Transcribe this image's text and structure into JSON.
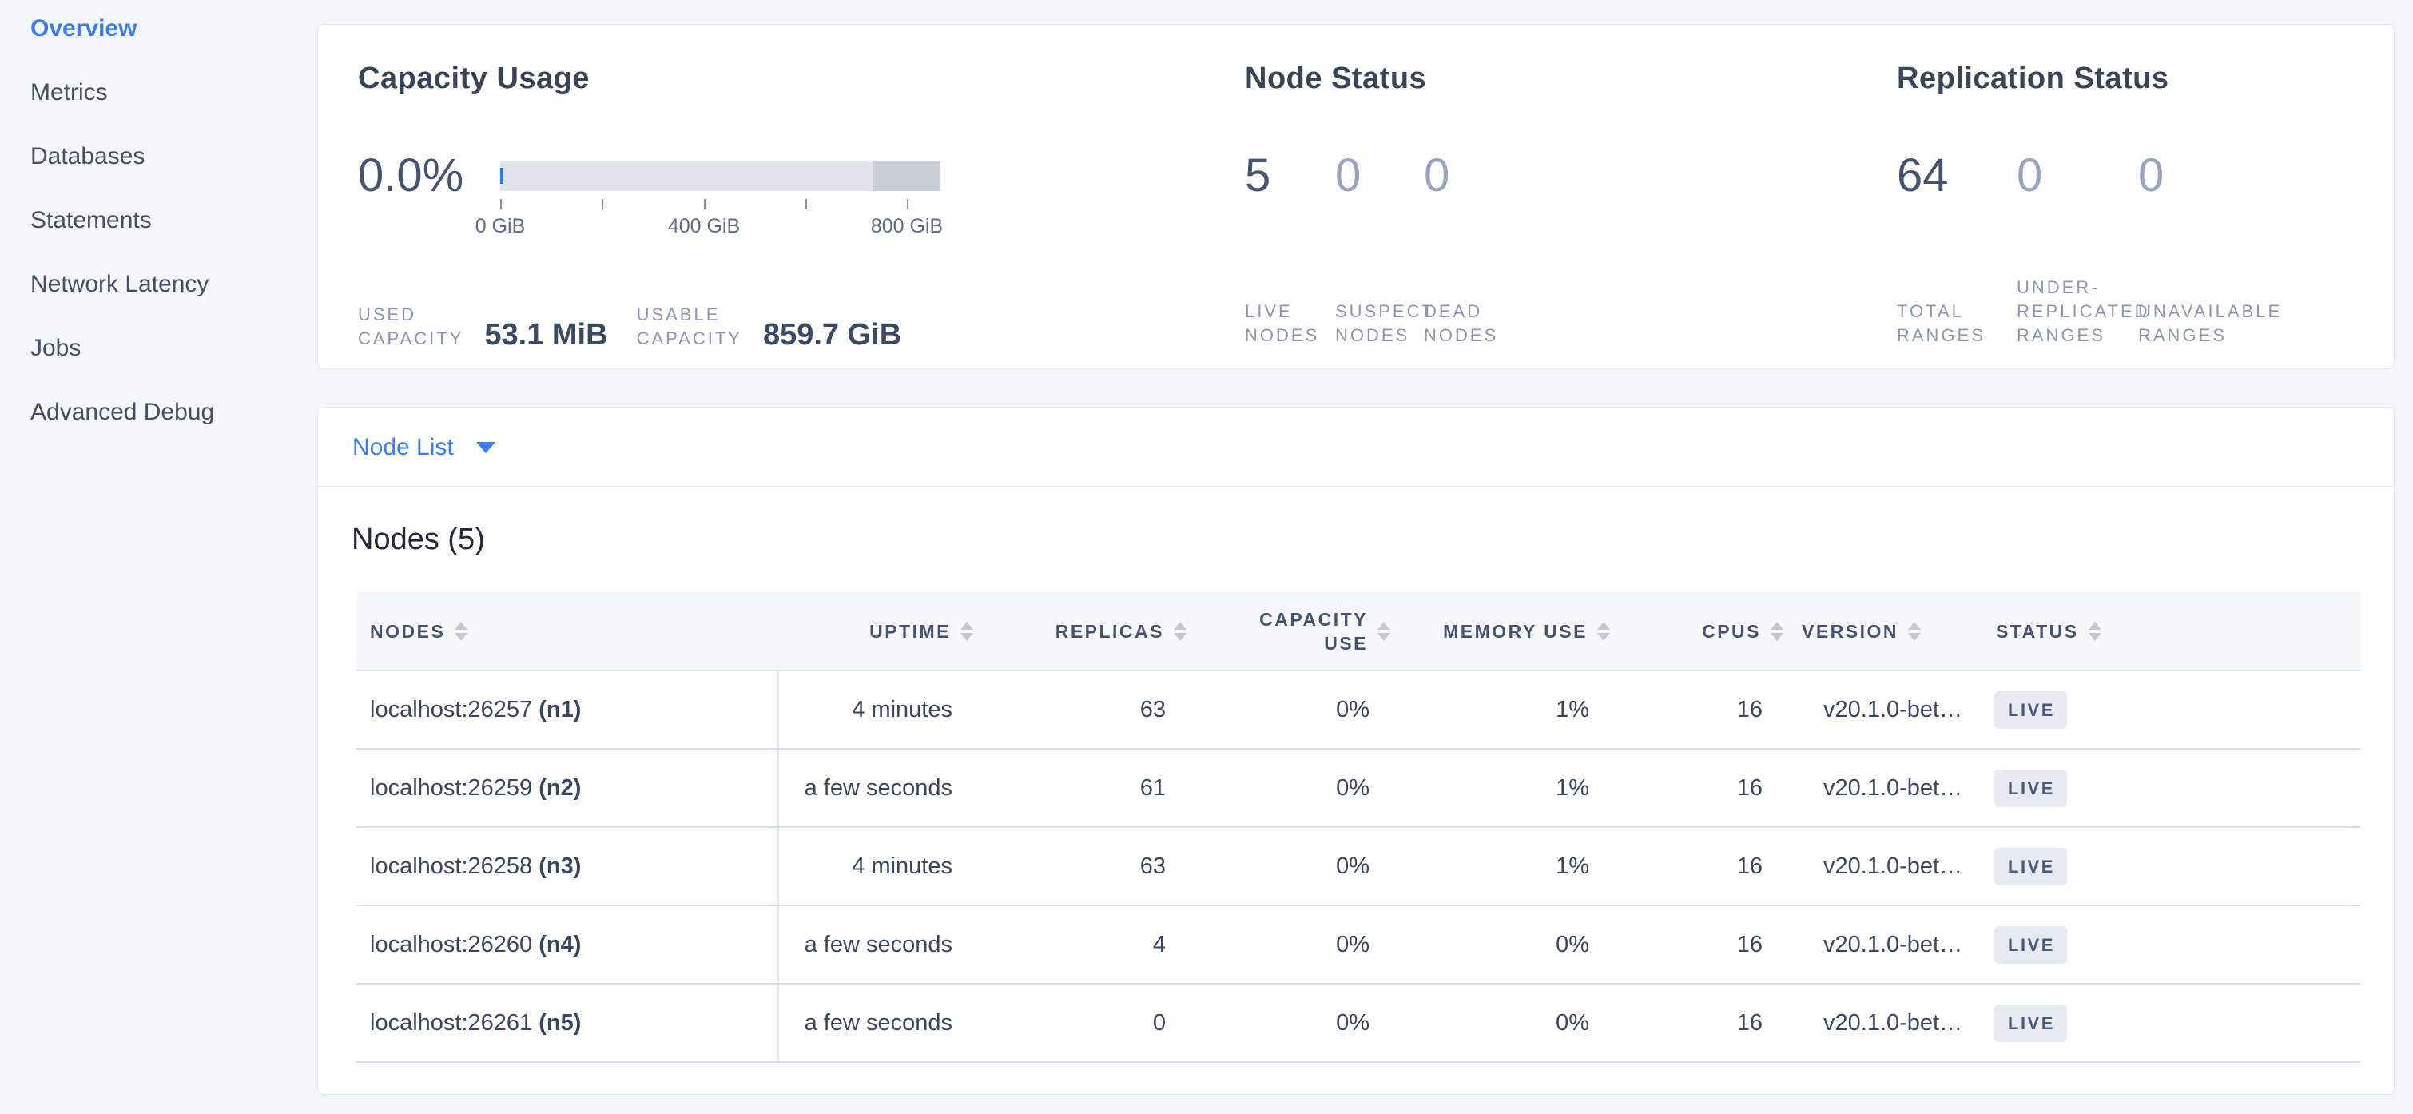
{
  "colors": {
    "accent_blue": "#3b7cf0",
    "badge_bg": "#e7eaf2",
    "badge_text": "#4a5977",
    "bar_used_blue": "#2b7cea",
    "bar_track": "#e2e5eb",
    "bar_dark_segment": "#c9cfd9",
    "page_bg": "#f4f6fa"
  },
  "sidebar": {
    "items": [
      {
        "label": "Overview",
        "active": true
      },
      {
        "label": "Metrics",
        "active": false
      },
      {
        "label": "Databases",
        "active": false
      },
      {
        "label": "Statements",
        "active": false
      },
      {
        "label": "Network Latency",
        "active": false
      },
      {
        "label": "Jobs",
        "active": false
      },
      {
        "label": "Advanced Debug",
        "active": false
      }
    ]
  },
  "overview": {
    "capacity": {
      "title": "Capacity Usage",
      "percent": "0.0%",
      "axis_labels": {
        "start": "0 GiB",
        "mid": "400 GiB",
        "end": "800 GiB"
      },
      "used": {
        "label_lines": [
          "USED",
          "CAPACITY"
        ],
        "value": "53.1 MiB"
      },
      "usable": {
        "label_lines": [
          "USABLE",
          "CAPACITY"
        ],
        "value": "859.7 GiB"
      }
    },
    "node_status": {
      "title": "Node Status",
      "stats": [
        {
          "value": "5",
          "label_lines": [
            "LIVE",
            "NODES"
          ],
          "muted": false
        },
        {
          "value": "0",
          "label_lines": [
            "SUSPECT",
            "NODES"
          ],
          "muted": true
        },
        {
          "value": "0",
          "label_lines": [
            "DEAD",
            "NODES"
          ],
          "muted": true
        }
      ]
    },
    "replication": {
      "title": "Replication Status",
      "stats": [
        {
          "value": "64",
          "label_lines": [
            "TOTAL",
            "RANGES"
          ],
          "muted": false
        },
        {
          "value": "0",
          "label_lines": [
            "UNDER-",
            "REPLICATED",
            "RANGES"
          ],
          "muted": true
        },
        {
          "value": "0",
          "label_lines": [
            "UNAVAILABLE",
            "RANGES"
          ],
          "muted": true
        }
      ]
    }
  },
  "nodes_section": {
    "dropdown_label": "Node List",
    "table_title": "Nodes (5)",
    "columns": [
      {
        "key": "nodes",
        "label": "NODES"
      },
      {
        "key": "uptime",
        "label": "UPTIME"
      },
      {
        "key": "replicas",
        "label": "REPLICAS"
      },
      {
        "key": "capacity_use",
        "label": "CAPACITY USE"
      },
      {
        "key": "memory_use",
        "label": "MEMORY USE"
      },
      {
        "key": "cpus",
        "label": "CPUS"
      },
      {
        "key": "version",
        "label": "VERSION"
      },
      {
        "key": "status",
        "label": "STATUS"
      }
    ],
    "rows": [
      {
        "address": "localhost:26257",
        "node_id": "(n1)",
        "uptime": "4 minutes",
        "replicas": "63",
        "capacity_use": "0%",
        "memory_use": "1%",
        "cpus": "16",
        "version": "v20.1.0-bet…",
        "status": "LIVE"
      },
      {
        "address": "localhost:26259",
        "node_id": "(n2)",
        "uptime": "a few seconds",
        "replicas": "61",
        "capacity_use": "0%",
        "memory_use": "1%",
        "cpus": "16",
        "version": "v20.1.0-bet…",
        "status": "LIVE"
      },
      {
        "address": "localhost:26258",
        "node_id": "(n3)",
        "uptime": "4 minutes",
        "replicas": "63",
        "capacity_use": "0%",
        "memory_use": "1%",
        "cpus": "16",
        "version": "v20.1.0-bet…",
        "status": "LIVE"
      },
      {
        "address": "localhost:26260",
        "node_id": "(n4)",
        "uptime": "a few seconds",
        "replicas": "4",
        "capacity_use": "0%",
        "memory_use": "0%",
        "cpus": "16",
        "version": "v20.1.0-bet…",
        "status": "LIVE"
      },
      {
        "address": "localhost:26261",
        "node_id": "(n5)",
        "uptime": "a few seconds",
        "replicas": "0",
        "capacity_use": "0%",
        "memory_use": "0%",
        "cpus": "16",
        "version": "v20.1.0-bet…",
        "status": "LIVE"
      }
    ]
  }
}
